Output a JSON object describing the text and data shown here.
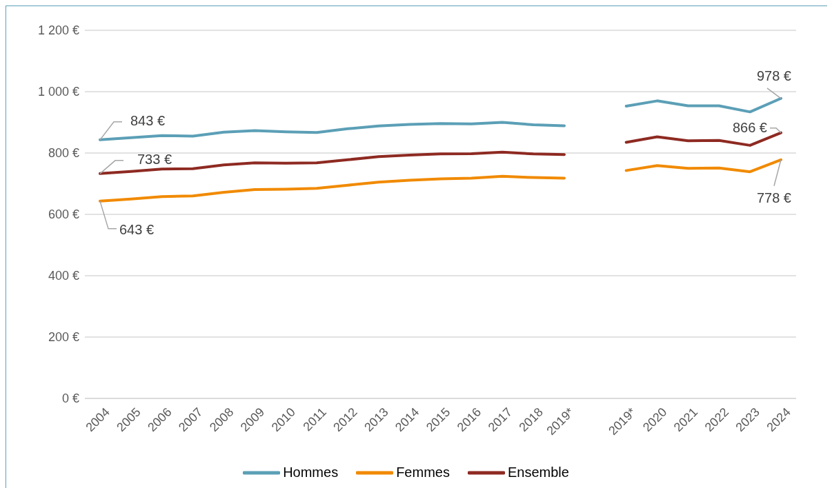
{
  "chart_data": {
    "type": "line",
    "categories": [
      "2004",
      "2005",
      "2006",
      "2007",
      "2008",
      "2009",
      "2010",
      "2011",
      "2012",
      "2013",
      "2014",
      "2015",
      "2016",
      "2017",
      "2018",
      "2019*",
      null,
      "2019*",
      "2020",
      "2021",
      "2022",
      "2023",
      "2024"
    ],
    "series": [
      {
        "name": "Hommes",
        "color": "#5b9fb6",
        "values": [
          843,
          850,
          857,
          855,
          868,
          873,
          869,
          867,
          879,
          888,
          893,
          896,
          895,
          900,
          892,
          889,
          null,
          953,
          970,
          954,
          954,
          934,
          978
        ],
        "value_labels": [
          "843 €",
          null,
          null,
          null,
          null,
          null,
          null,
          null,
          null,
          null,
          null,
          null,
          null,
          null,
          null,
          null,
          null,
          null,
          null,
          null,
          null,
          null,
          "978 €"
        ]
      },
      {
        "name": "Femmes",
        "color": "#f18a00",
        "values": [
          643,
          650,
          658,
          660,
          672,
          681,
          682,
          685,
          695,
          705,
          711,
          716,
          718,
          724,
          720,
          718,
          null,
          743,
          759,
          750,
          751,
          739,
          778
        ],
        "value_labels": [
          "643 €",
          null,
          null,
          null,
          null,
          null,
          null,
          null,
          null,
          null,
          null,
          null,
          null,
          null,
          null,
          null,
          null,
          null,
          null,
          null,
          null,
          null,
          "778 €"
        ]
      },
      {
        "name": "Ensemble",
        "color": "#8e2a22",
        "values": [
          733,
          740,
          748,
          749,
          761,
          768,
          767,
          768,
          778,
          788,
          793,
          797,
          798,
          803,
          797,
          795,
          null,
          835,
          853,
          840,
          841,
          825,
          866
        ],
        "value_labels": [
          "733 €",
          null,
          null,
          null,
          null,
          null,
          null,
          null,
          null,
          null,
          null,
          null,
          null,
          null,
          null,
          null,
          null,
          null,
          null,
          null,
          null,
          null,
          "866 €"
        ]
      }
    ],
    "ylim": [
      0,
      1200
    ],
    "yticks": [
      {
        "value": 0,
        "label": "0 €"
      },
      {
        "value": 200,
        "label": "200 €"
      },
      {
        "value": 400,
        "label": "400 €"
      },
      {
        "value": 600,
        "label": "600 €"
      },
      {
        "value": 800,
        "label": "800 €"
      },
      {
        "value": 1000,
        "label": "1 000 €"
      },
      {
        "value": 1200,
        "label": "1 200 €"
      }
    ],
    "grid": "y",
    "legend": "bottom",
    "marker": "none",
    "line_style": "solid"
  }
}
